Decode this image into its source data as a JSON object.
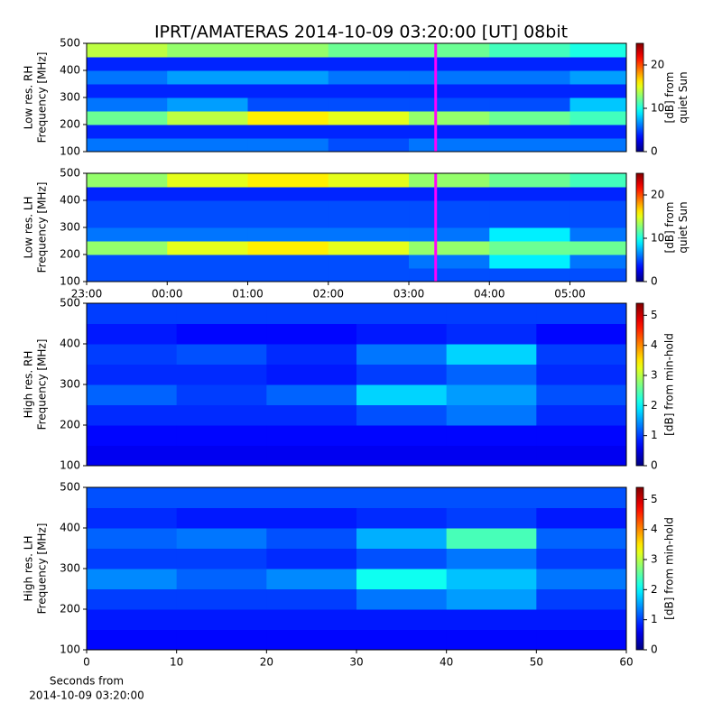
{
  "title": "IPRT/AMATERAS 2014-10-09 03:20:00 [UT]   08bit",
  "chart_data": [
    {
      "type": "heatmap",
      "colormap": "jet",
      "ylabel": [
        "Low res. RH",
        "Frequency [MHz]"
      ],
      "colorbar_label": [
        "[dB] from",
        "quiet Sun"
      ],
      "xlim": [
        23,
        29.7
      ],
      "ylim": [
        100,
        500
      ],
      "yticks": [
        100,
        200,
        300,
        400,
        500
      ],
      "clim": [
        0,
        25
      ],
      "cticks": [
        0,
        10,
        20
      ],
      "x_bins": [
        23,
        24,
        25,
        26,
        27,
        28,
        29,
        29.7
      ],
      "y_bins": [
        100,
        150,
        200,
        250,
        300,
        350,
        400,
        450,
        500
      ],
      "z": [
        [
          6,
          6,
          6,
          5,
          6,
          6,
          6
        ],
        [
          4,
          4,
          4,
          4,
          4,
          4,
          4
        ],
        [
          12,
          14,
          16,
          15,
          13,
          12,
          11
        ],
        [
          6,
          7,
          5,
          5,
          5,
          5,
          8
        ],
        [
          4,
          4,
          4,
          4,
          4,
          4,
          4
        ],
        [
          6,
          7,
          7,
          6,
          6,
          6,
          7
        ],
        [
          4,
          4,
          4,
          4,
          4,
          4,
          4
        ],
        [
          14,
          13,
          13,
          12,
          12,
          11,
          10
        ]
      ],
      "vline": {
        "x": 27.333,
        "color": "#ff00ff"
      }
    },
    {
      "type": "heatmap",
      "colormap": "jet",
      "ylabel": [
        "Low res. LH",
        "Frequency [MHz]"
      ],
      "colorbar_label": [
        "[dB] from",
        "quiet Sun"
      ],
      "xlim": [
        23,
        29.7
      ],
      "ylim": [
        100,
        500
      ],
      "yticks": [
        100,
        200,
        300,
        400,
        500
      ],
      "xticks": [
        {
          "value": 23,
          "label": "23:00"
        },
        {
          "value": 24,
          "label": "00:00"
        },
        {
          "value": 25,
          "label": "01:00"
        },
        {
          "value": 26,
          "label": "02:00"
        },
        {
          "value": 27,
          "label": "03:00"
        },
        {
          "value": 28,
          "label": "04:00"
        },
        {
          "value": 29,
          "label": "05:00"
        }
      ],
      "clim": [
        0,
        25
      ],
      "cticks": [
        0,
        10,
        20
      ],
      "x_bins": [
        23,
        24,
        25,
        26,
        27,
        28,
        29,
        29.7
      ],
      "y_bins": [
        100,
        150,
        200,
        250,
        300,
        350,
        400,
        450,
        500
      ],
      "z": [
        [
          5,
          5,
          5,
          5,
          5,
          5,
          5
        ],
        [
          5,
          5,
          5,
          5,
          6,
          9,
          6
        ],
        [
          13,
          15,
          16,
          15,
          13,
          12,
          12
        ],
        [
          6,
          6,
          6,
          6,
          6,
          9,
          6
        ],
        [
          5,
          5,
          5,
          5,
          5,
          5,
          5
        ],
        [
          5,
          5,
          5,
          5,
          5,
          5,
          5
        ],
        [
          4,
          4,
          4,
          4,
          4,
          4,
          4
        ],
        [
          13,
          15,
          16,
          15,
          13,
          12,
          11
        ]
      ],
      "vline": {
        "x": 27.333,
        "color": "#ff00ff"
      }
    },
    {
      "type": "heatmap",
      "colormap": "jet",
      "ylabel": [
        "High res. RH",
        "Frequency [MHz]"
      ],
      "colorbar_label": [
        "[dB] from min-hold"
      ],
      "xlim": [
        0,
        60
      ],
      "ylim": [
        100,
        500
      ],
      "yticks": [
        100,
        200,
        300,
        400,
        500
      ],
      "clim": [
        0,
        5.4
      ],
      "cticks": [
        0,
        1,
        2,
        3,
        4,
        5
      ],
      "x_bins": [
        0,
        10,
        20,
        30,
        40,
        50,
        60
      ],
      "y_bins": [
        100,
        150,
        200,
        250,
        300,
        350,
        400,
        450,
        500
      ],
      "z": [
        [
          0.6,
          0.6,
          0.6,
          0.6,
          0.6,
          0.6
        ],
        [
          0.7,
          0.7,
          0.7,
          0.7,
          0.7,
          0.7
        ],
        [
          0.9,
          0.9,
          0.9,
          1.1,
          1.3,
          0.9
        ],
        [
          1.2,
          1,
          1.2,
          1.8,
          1.5,
          1.1
        ],
        [
          0.9,
          0.9,
          0.8,
          1,
          1.2,
          0.9
        ],
        [
          1,
          1.1,
          0.9,
          1.3,
          1.8,
          1
        ],
        [
          0.8,
          0.7,
          0.7,
          0.8,
          0.9,
          0.7
        ],
        [
          1,
          1,
          1,
          1,
          1,
          1
        ]
      ]
    },
    {
      "type": "heatmap",
      "colormap": "jet",
      "ylabel": [
        "High res. LH",
        "Frequency [MHz]"
      ],
      "colorbar_label": [
        "[dB] from min-hold"
      ],
      "xlabel": [
        "Seconds from",
        "2014-10-09 03:20:00"
      ],
      "xlim": [
        0,
        60
      ],
      "ylim": [
        100,
        500
      ],
      "yticks": [
        100,
        200,
        300,
        400,
        500
      ],
      "xticks": [
        0,
        10,
        20,
        30,
        40,
        50,
        60
      ],
      "clim": [
        0,
        5.4
      ],
      "cticks": [
        0,
        1,
        2,
        3,
        4,
        5
      ],
      "x_bins": [
        0,
        10,
        20,
        30,
        40,
        50,
        60
      ],
      "y_bins": [
        100,
        150,
        200,
        250,
        300,
        350,
        400,
        450,
        500
      ],
      "z": [
        [
          0.7,
          0.7,
          0.7,
          0.7,
          0.7,
          0.7
        ],
        [
          0.8,
          0.8,
          0.8,
          0.8,
          0.8,
          0.8
        ],
        [
          1,
          1,
          1,
          1.3,
          1.5,
          1
        ],
        [
          1.4,
          1.2,
          1.4,
          2.1,
          1.7,
          1.3
        ],
        [
          1,
          1,
          0.9,
          1.1,
          1.3,
          1
        ],
        [
          1.2,
          1.3,
          1.1,
          1.6,
          2.4,
          1.2
        ],
        [
          0.9,
          0.8,
          0.8,
          0.9,
          1,
          0.8
        ],
        [
          1.1,
          1.1,
          1.1,
          1.1,
          1.1,
          1.1
        ]
      ]
    }
  ]
}
